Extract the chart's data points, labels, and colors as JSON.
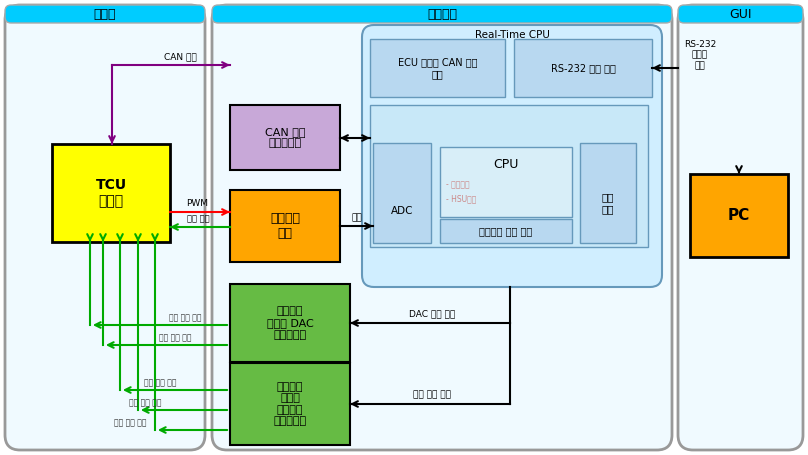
{
  "title_controller": "제어기",
  "title_simulator": "모사장치",
  "title_gui": "GUI",
  "tcu_label": "TCU\n제어기",
  "can_if_label": "CAN 통신\n인터페이스",
  "valve_label": "실부하용\n밸브",
  "dac_if_label": "압력센서\n모사용 DAC\n인터페이스",
  "speed_if_label": "속도센서\n모사용\n함수발생\n인터페이스",
  "rt_cpu_label": "Real-Time CPU",
  "ecu_can_label": "ECU 모사용 CAN 통신\n채널",
  "rs232_label": "RS-232 통신 채널",
  "cpu_label": "CPU",
  "adc_label": "ADC",
  "storage_label": "저장\n매체",
  "ext_comm_label": "외부모듈 통신 채널",
  "cpu_sub1": "- 필드모달",
  "cpu_sub2": "- HSU모달",
  "pc_label": "PC",
  "can_arrow_label": "CAN 통신",
  "pwm_label": "PWM",
  "current_sensor_label": "전류 센서",
  "current_label": "전류",
  "dac_cmd_label": "DAC 출력 명령",
  "speed_cmd_label": "속도 출력 명령",
  "rs232_comm_label": "RS-232\n시리얼\n통신"
}
